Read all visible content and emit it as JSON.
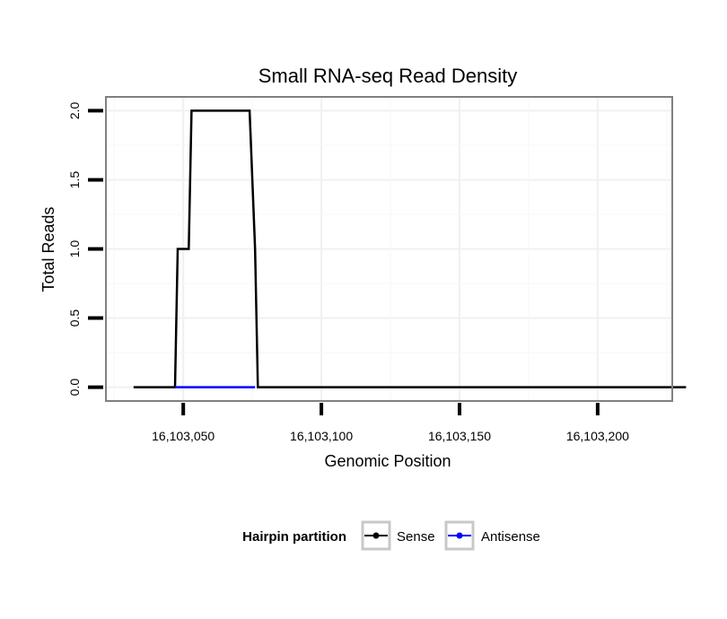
{
  "chart_data": {
    "type": "line",
    "title": "Small RNA-seq Read Density",
    "xlabel": "Genomic Position",
    "ylabel": "Total Reads",
    "xlim": [
      16103022,
      16103227
    ],
    "ylim": [
      -0.1,
      2.1
    ],
    "x_ticks": [
      {
        "value": 16103050,
        "label": "16,103,050"
      },
      {
        "value": 16103100,
        "label": "16,103,100"
      },
      {
        "value": 16103150,
        "label": "16,103,150"
      },
      {
        "value": 16103200,
        "label": "16,103,200"
      }
    ],
    "y_ticks": [
      {
        "value": 0.0,
        "label": "0.0"
      },
      {
        "value": 0.5,
        "label": "0.5"
      },
      {
        "value": 1.0,
        "label": "1.0"
      },
      {
        "value": 1.5,
        "label": "1.5"
      },
      {
        "value": 2.0,
        "label": "2.0"
      }
    ],
    "grid": true,
    "legend": {
      "title": "Hairpin partition",
      "position": "bottom",
      "entries": [
        {
          "name": "Sense",
          "color": "#000000"
        },
        {
          "name": "Antisense",
          "color": "#0000ff"
        }
      ]
    },
    "series": [
      {
        "name": "Sense",
        "color": "#000000",
        "x": [
          16103032,
          16103047,
          16103048,
          16103049,
          16103050,
          16103052,
          16103053,
          16103073,
          16103074,
          16103076,
          16103077,
          16103232
        ],
        "y": [
          0,
          0,
          1,
          1,
          1,
          1,
          2,
          2,
          2,
          1,
          0,
          0
        ]
      },
      {
        "name": "Antisense",
        "color": "#0000ff",
        "x": [
          16103047,
          16103076
        ],
        "y": [
          0,
          0
        ]
      }
    ]
  }
}
